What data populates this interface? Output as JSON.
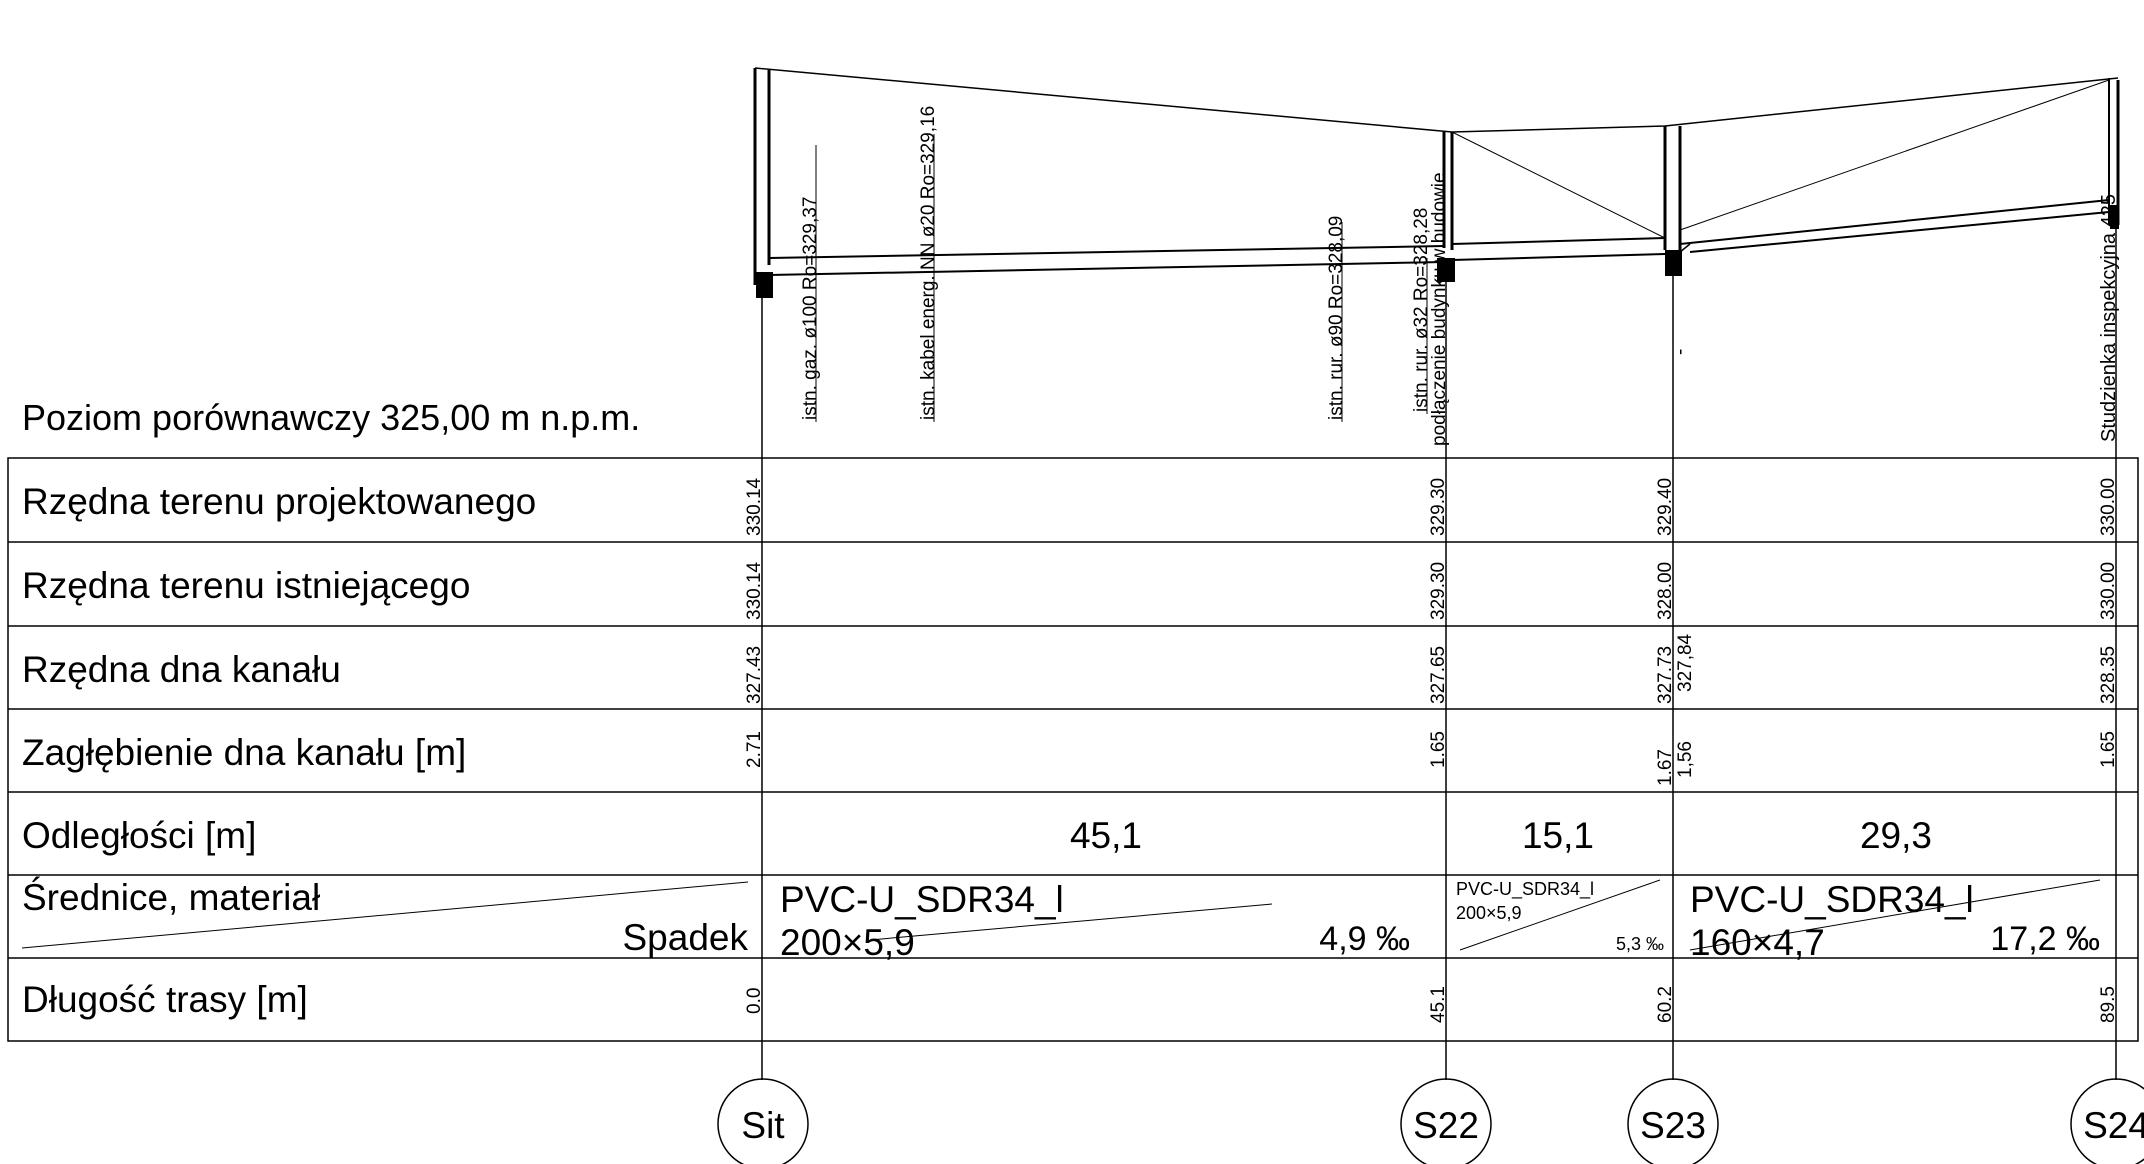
{
  "reference_level": "Poziom porównawczy 325,00 m n.p.m.",
  "row_labels": {
    "design_terrain": "Rzędna terenu projektowanego",
    "existing_terrain": "Rzędna terenu istniejącego",
    "invert": "Rzędna dna kanału",
    "depth": "Zagłębienie dna kanału [m]",
    "distance": "Odległości [m]",
    "diameter": "Średnice, materiał",
    "slope": "Spadek",
    "chainage": "Długość trasy [m]"
  },
  "stations": [
    {
      "name": "Sit",
      "design_terrain": "330.14",
      "existing_terrain": "330.14",
      "invert": "327.43",
      "depth": "2.71",
      "chainage": "0.0"
    },
    {
      "name": "S22",
      "design_terrain": "329.30",
      "existing_terrain": "329.30",
      "invert": "327.65",
      "depth": "1.65",
      "chainage": "45.1"
    },
    {
      "name": "S23",
      "design_terrain": "329.40",
      "existing_terrain": "328.00",
      "invert": "327.73",
      "invert_out": "327,84",
      "depth": "1.67",
      "depth_out": "1,56",
      "chainage": "60.2"
    },
    {
      "name": "S24",
      "design_terrain": "330.00",
      "existing_terrain": "330.00",
      "invert": "328.35",
      "depth": "1.65",
      "chainage": "89.5"
    }
  ],
  "segments": [
    {
      "distance": "45,1",
      "material": "PVC-U_SDR34_l",
      "size": "200×5,9",
      "slope": "4,9 ‰"
    },
    {
      "distance": "15,1",
      "material": "PVC-U_SDR34_l",
      "size": "200×5,9",
      "slope": "5,3 ‰"
    },
    {
      "distance": "29,3",
      "material": "PVC-U_SDR34_l",
      "size": "160×4,7",
      "slope": "17,2 ‰"
    }
  ],
  "crossings": [
    {
      "label": "istn. gaz. ø100  Ro=329,37"
    },
    {
      "label": "istn. kabel energ. NN  ø20  Ro=329,16"
    },
    {
      "label": "istn. rur. ø90  Ro=328,09"
    },
    {
      "label": "istn. rur. ø32  Ro=328,28"
    }
  ],
  "manhole_notes": [
    {
      "label": "podłączenie budynku w budowie"
    },
    {
      "label": "-"
    },
    {
      "label": "Studzienka inspekcyjna 425"
    }
  ]
}
